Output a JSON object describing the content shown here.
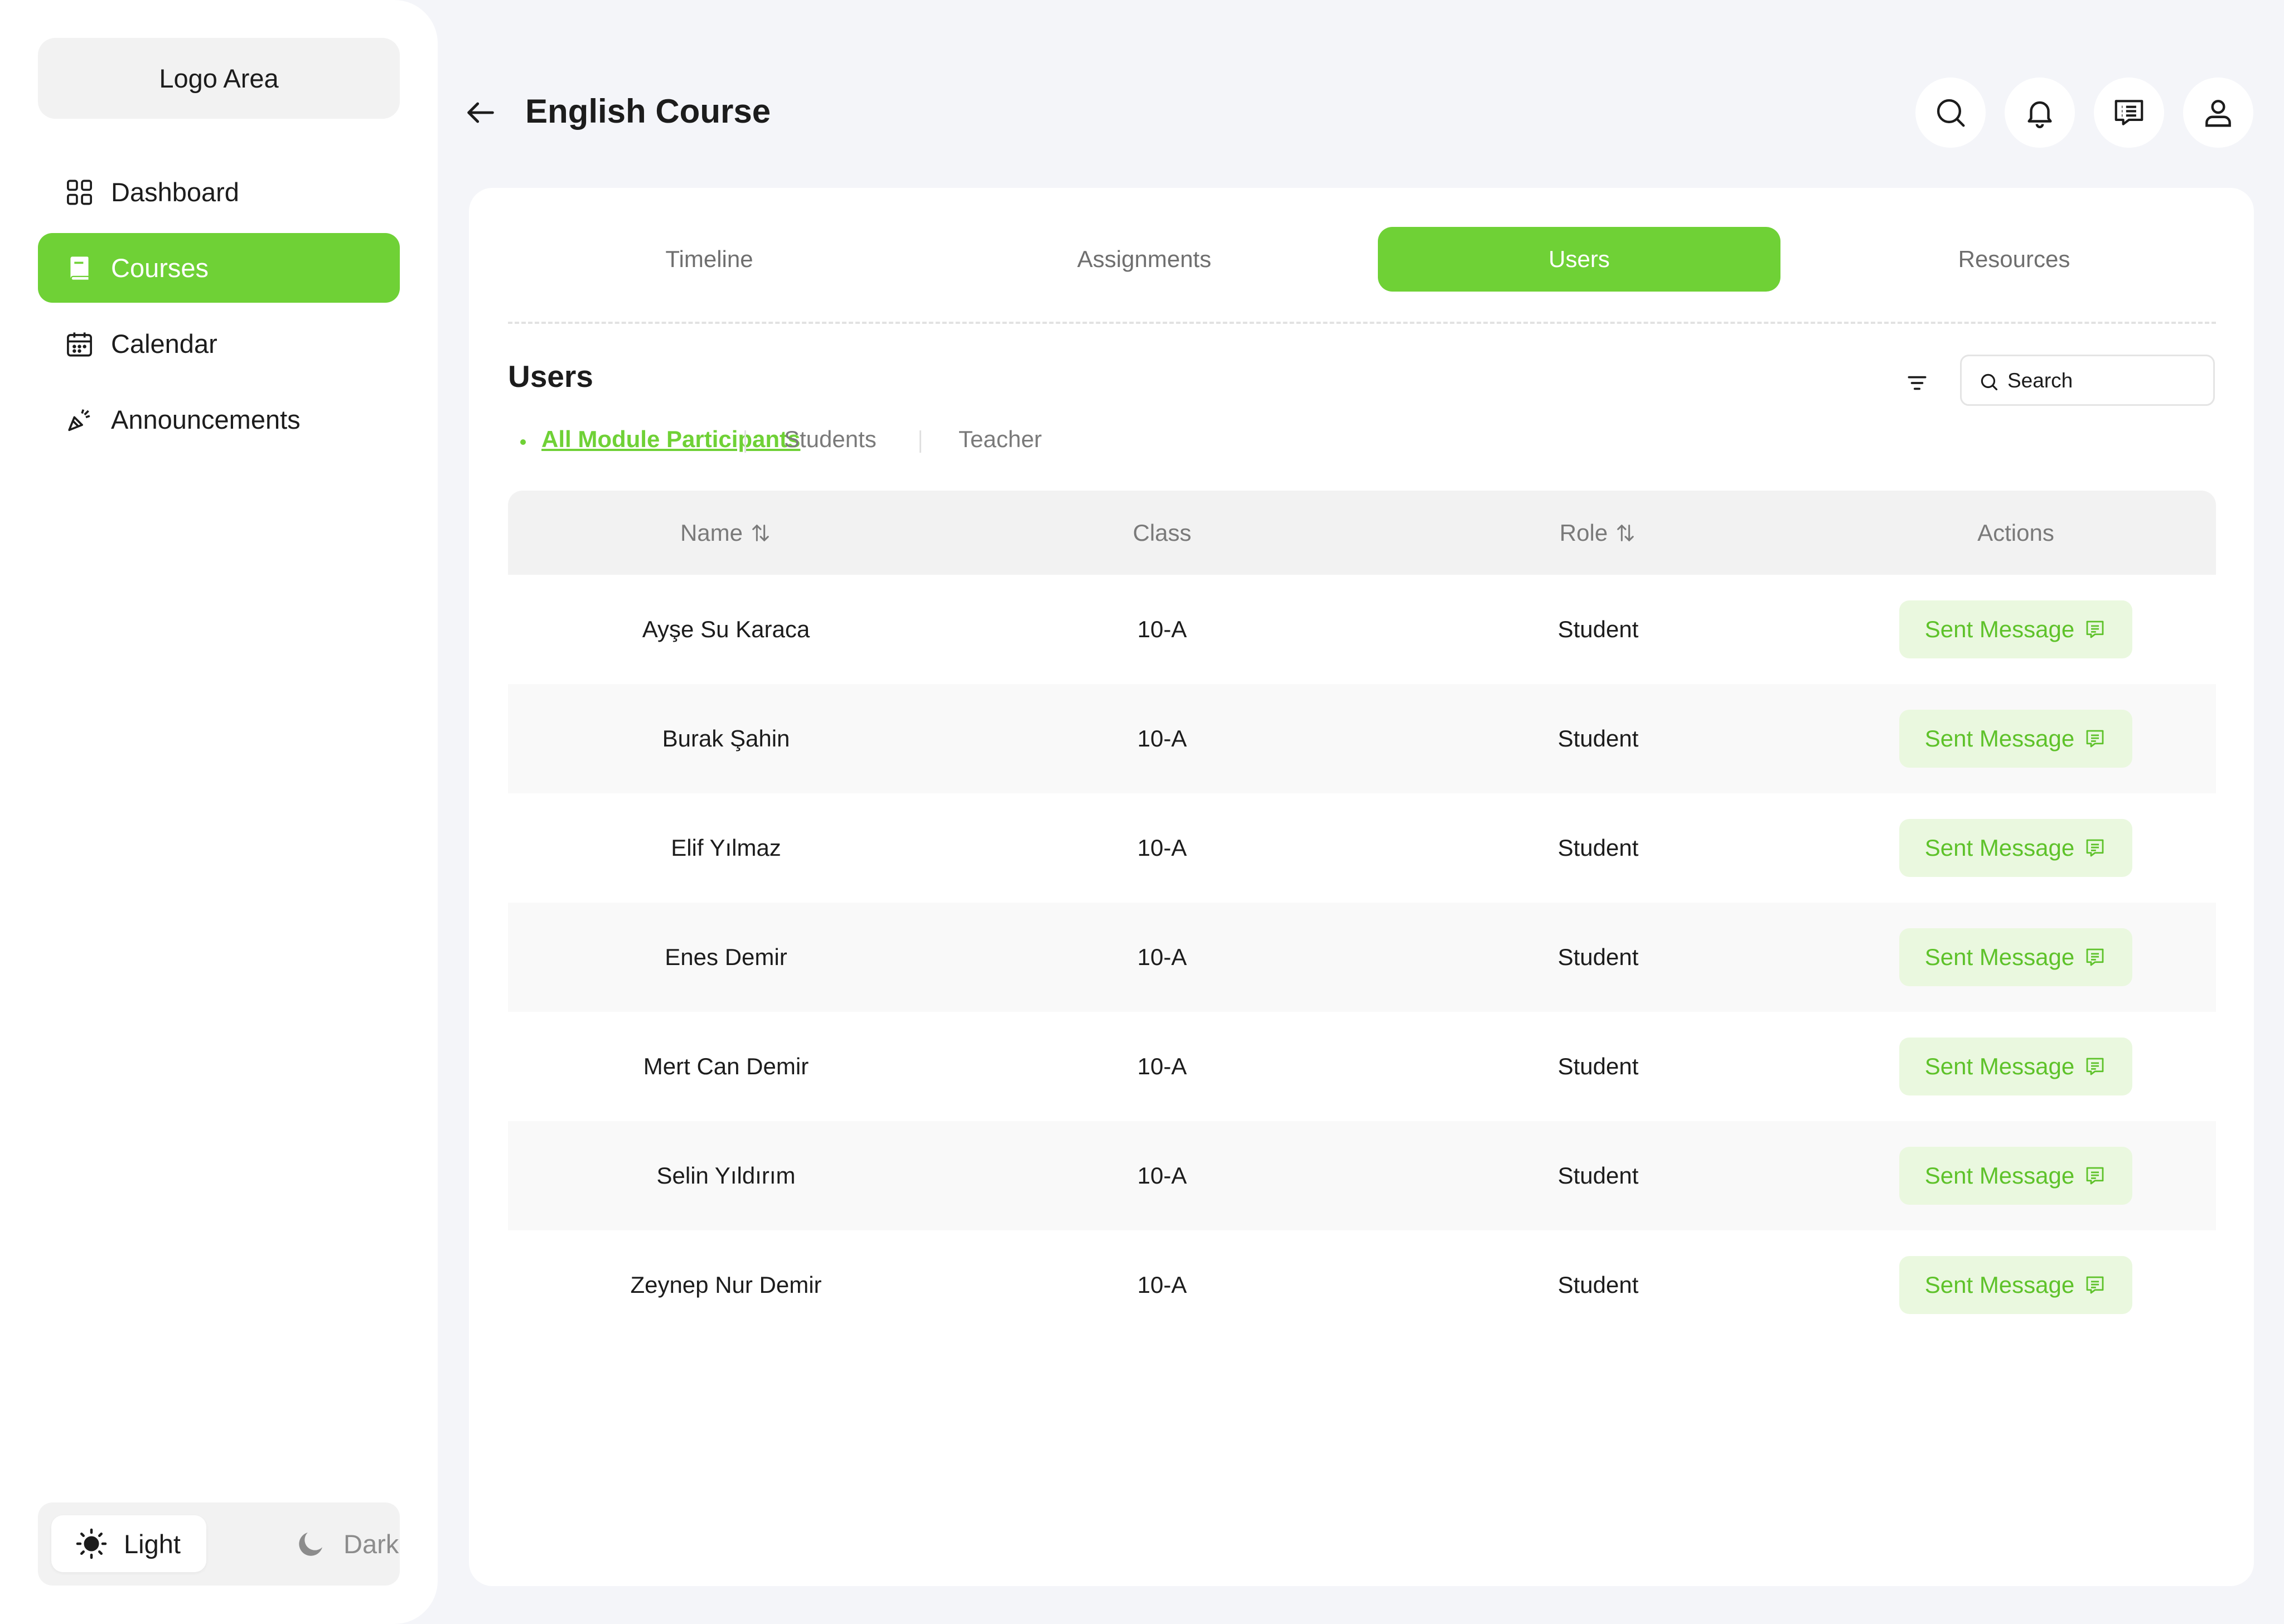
{
  "sidebar": {
    "logo": "Logo Area",
    "items": [
      {
        "label": "Dashboard",
        "icon": "grid-icon"
      },
      {
        "label": "Courses",
        "icon": "book-icon",
        "active": true
      },
      {
        "label": "Calendar",
        "icon": "calendar-icon"
      },
      {
        "label": "Announcements",
        "icon": "megaphone-icon"
      }
    ],
    "theme": {
      "light": "Light",
      "dark": "Dark",
      "selected": "Light"
    }
  },
  "header": {
    "title": "English Course"
  },
  "tabs": [
    {
      "label": "Timeline"
    },
    {
      "label": "Assignments"
    },
    {
      "label": "Users",
      "active": true
    },
    {
      "label": "Resources"
    }
  ],
  "users": {
    "title": "Users",
    "search_placeholder": "Search",
    "subtabs": [
      {
        "label": "All Module Participants",
        "active": true
      },
      {
        "label": "Students"
      },
      {
        "label": "Teacher"
      }
    ],
    "columns": [
      "Name",
      "Class",
      "Role",
      "Actions"
    ],
    "action_label": "Sent Message",
    "rows": [
      {
        "name": "Ayşe Su Karaca",
        "class": "10-A",
        "role": "Student"
      },
      {
        "name": "Burak Şahin",
        "class": "10-A",
        "role": "Student"
      },
      {
        "name": "Elif Yılmaz",
        "class": "10-A",
        "role": "Student"
      },
      {
        "name": "Enes Demir",
        "class": "10-A",
        "role": "Student"
      },
      {
        "name": "Mert Can Demir",
        "class": "10-A",
        "role": "Student"
      },
      {
        "name": "Selin Yıldırım",
        "class": "10-A",
        "role": "Student"
      },
      {
        "name": "Zeynep Nur Demir",
        "class": "10-A",
        "role": "Student"
      }
    ]
  },
  "colors": {
    "accent": "#6fd136",
    "accent_soft": "#eaf8df",
    "background": "#f4f5f9"
  }
}
